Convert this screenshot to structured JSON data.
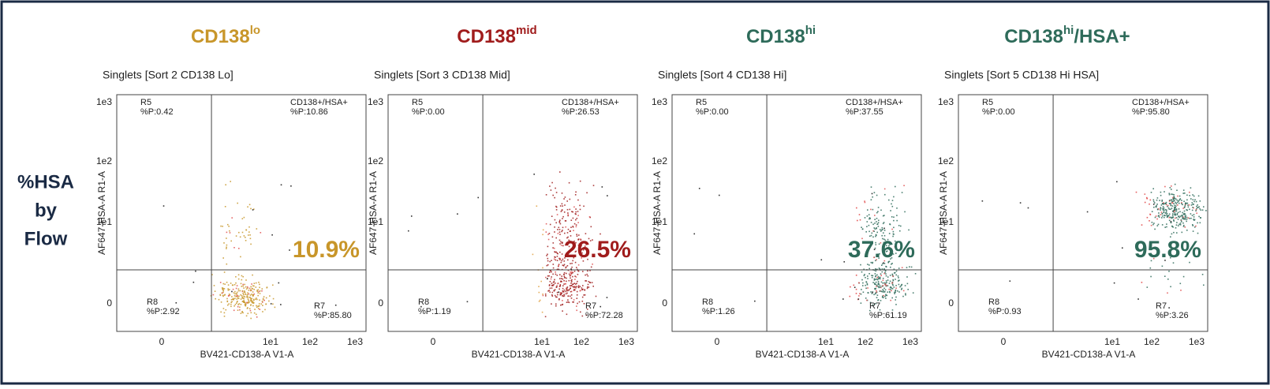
{
  "row_label": [
    "%HSA",
    "by",
    "Flow"
  ],
  "axes": {
    "y_label": "AF647-HSA-A R1-A",
    "x_label": "BV421-CD138-A V1-A",
    "y_ticks": [
      "1e3",
      "1e2",
      "1e1",
      "0"
    ],
    "x_ticks": [
      "0",
      "1e1",
      "1e2",
      "1e3"
    ]
  },
  "gates": {
    "r5": "R5",
    "double": "CD138+/HSA+",
    "r8": "R8",
    "r7": "R7"
  },
  "panels": [
    {
      "title": {
        "base": "CD138",
        "sup": "lo",
        "suffix": ""
      },
      "color": "#c8962a",
      "subtitle": "Singlets [Sort 2 CD138 Lo]",
      "r5": "%P:0.42",
      "double": "%P:10.86",
      "r8": "%P:2.92",
      "r7": "%P:85.80",
      "percent": "10.9%"
    },
    {
      "title": {
        "base": "CD138",
        "sup": "mid",
        "suffix": ""
      },
      "color": "#a01c1c",
      "subtitle": "Singlets [Sort 3 CD138 Mid]",
      "r5": "%P:0.00",
      "double": "%P:26.53",
      "r8": "%P:1.19",
      "r7": "%P:72.28",
      "percent": "26.5%"
    },
    {
      "title": {
        "base": "CD138",
        "sup": "hi",
        "suffix": ""
      },
      "color": "#2e6b5a",
      "subtitle": "Singlets [Sort 4 CD138 Hi]",
      "r5": "%P:0.00",
      "double": "%P:37.55",
      "r8": "%P:1.26",
      "r7": "%P:61.19",
      "percent": "37.6%"
    },
    {
      "title": {
        "base": "CD138",
        "sup": "hi",
        "suffix": "/HSA+"
      },
      "color": "#2e6b5a",
      "subtitle": "Singlets [Sort 5 CD138 Hi HSA]",
      "r5": "%P:0.00",
      "double": "%P:95.80",
      "r8": "%P:0.93",
      "r7": "%P:3.26",
      "percent": "95.8%"
    }
  ]
}
